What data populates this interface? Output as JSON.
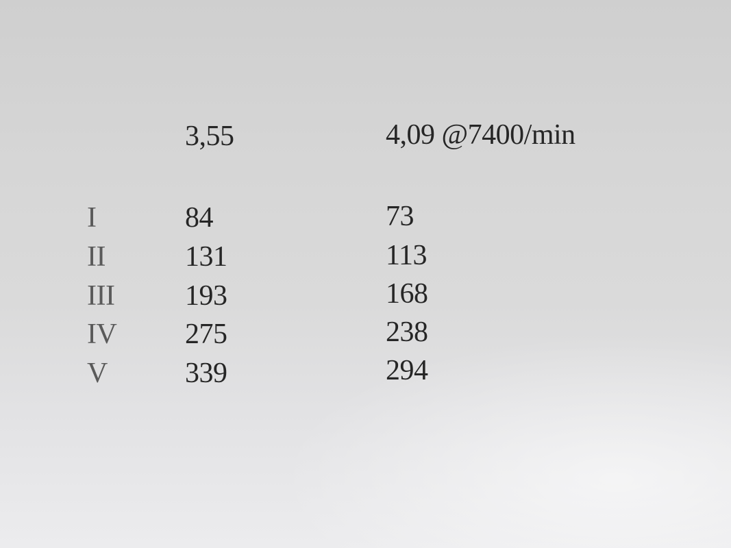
{
  "header": {
    "col1": "3,55",
    "col2": "4,09 @7400/min"
  },
  "rows": [
    {
      "label": "I",
      "a": "84",
      "b": "73"
    },
    {
      "label": "II",
      "a": "131",
      "b": "113"
    },
    {
      "label": "III",
      "a": "193",
      "b": "168"
    },
    {
      "label": "IV",
      "a": "275",
      "b": "238"
    },
    {
      "label": "V",
      "a": "339",
      "b": "294"
    }
  ]
}
